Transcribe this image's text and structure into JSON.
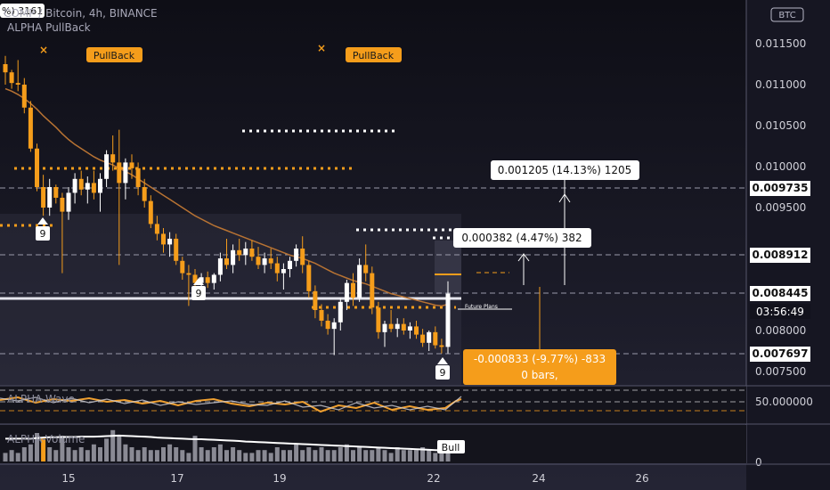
{
  "header": {
    "badge": "%) 3161",
    "title": "COMP / Bitcoin, 4h, BINANCE",
    "indicator": "ALPHA PullBack"
  },
  "currency_badge": "BTC",
  "colors": {
    "background": "#12121c",
    "panel": "#1f2030",
    "orange": "#f59d1b",
    "candle_up": "#ffffff",
    "candle_down": "#f59d1b",
    "ma": "#b87333",
    "wave": "#f0a030"
  },
  "chart_data": [
    {
      "type": "candlestick",
      "title": "COMP / Bitcoin, 4h, BINANCE",
      "y_ticks": [
        "0.011500",
        "0.011000",
        "0.010500",
        "0.010000",
        "0.009500",
        "0.008000",
        "0.007500"
      ],
      "ylim": [
        0.00735,
        0.01225
      ],
      "x_ticks": [
        "15",
        "17",
        "19",
        "22",
        "24",
        "26"
      ],
      "price_labels": [
        {
          "value": 0.009735,
          "text": "0.009735"
        },
        {
          "value": 0.008912,
          "text": "0.008912"
        },
        {
          "value": 0.008445,
          "text": "0.008445"
        },
        {
          "value": 0.007697,
          "text": "0.007697"
        }
      ],
      "countdown": "03:56:49",
      "measure_boxes": [
        {
          "text": "0.001205 (14.13%) 1205"
        },
        {
          "text": "0.000382 (4.47%) 382"
        },
        {
          "text": "-0.000833 (-9.77%) -833",
          "sub": "0 bars,"
        }
      ],
      "pullback_labels": [
        "PullBack",
        "PullBack"
      ],
      "count_labels": [
        "9",
        "9",
        "9"
      ],
      "future_label": "Future Plans",
      "candles": [
        {
          "o": 0.01125,
          "h": 0.01135,
          "l": 0.011,
          "c": 0.01115
        },
        {
          "o": 0.01115,
          "h": 0.01118,
          "l": 0.01095,
          "c": 0.01102
        },
        {
          "o": 0.01102,
          "h": 0.0113,
          "l": 0.01092,
          "c": 0.011
        },
        {
          "o": 0.011,
          "h": 0.01108,
          "l": 0.01065,
          "c": 0.01072
        },
        {
          "o": 0.01072,
          "h": 0.0108,
          "l": 0.01018,
          "c": 0.01022
        },
        {
          "o": 0.01022,
          "h": 0.01028,
          "l": 0.0097,
          "c": 0.00975
        },
        {
          "o": 0.00975,
          "h": 0.0099,
          "l": 0.0094,
          "c": 0.0095
        },
        {
          "o": 0.0095,
          "h": 0.00985,
          "l": 0.0094,
          "c": 0.00975
        },
        {
          "o": 0.00975,
          "h": 0.00978,
          "l": 0.00955,
          "c": 0.00962
        },
        {
          "o": 0.00962,
          "h": 0.00968,
          "l": 0.0087,
          "c": 0.00945
        },
        {
          "o": 0.00945,
          "h": 0.00975,
          "l": 0.00935,
          "c": 0.00968
        },
        {
          "o": 0.00968,
          "h": 0.00992,
          "l": 0.00955,
          "c": 0.00985
        },
        {
          "o": 0.00985,
          "h": 0.00995,
          "l": 0.00965,
          "c": 0.00972
        },
        {
          "o": 0.00972,
          "h": 0.00988,
          "l": 0.00955,
          "c": 0.0098
        },
        {
          "o": 0.0098,
          "h": 0.00995,
          "l": 0.0096,
          "c": 0.00968
        },
        {
          "o": 0.00968,
          "h": 0.00992,
          "l": 0.00945,
          "c": 0.00985
        },
        {
          "o": 0.00985,
          "h": 0.0102,
          "l": 0.00975,
          "c": 0.01015
        },
        {
          "o": 0.01015,
          "h": 0.01038,
          "l": 0.00995,
          "c": 0.01005
        },
        {
          "o": 0.01005,
          "h": 0.01045,
          "l": 0.0088,
          "c": 0.0098
        },
        {
          "o": 0.0098,
          "h": 0.0101,
          "l": 0.0096,
          "c": 0.01005
        },
        {
          "o": 0.01005,
          "h": 0.01015,
          "l": 0.00985,
          "c": 0.00998
        },
        {
          "o": 0.00998,
          "h": 0.01005,
          "l": 0.00965,
          "c": 0.00975
        },
        {
          "o": 0.00975,
          "h": 0.00985,
          "l": 0.0095,
          "c": 0.00958
        },
        {
          "o": 0.00958,
          "h": 0.00965,
          "l": 0.00925,
          "c": 0.0093
        },
        {
          "o": 0.0093,
          "h": 0.0094,
          "l": 0.0091,
          "c": 0.00918
        },
        {
          "o": 0.00918,
          "h": 0.00925,
          "l": 0.00895,
          "c": 0.00905
        },
        {
          "o": 0.00905,
          "h": 0.0092,
          "l": 0.0089,
          "c": 0.00912
        },
        {
          "o": 0.00912,
          "h": 0.00918,
          "l": 0.0088,
          "c": 0.00885
        },
        {
          "o": 0.00885,
          "h": 0.0089,
          "l": 0.00862,
          "c": 0.0087
        },
        {
          "o": 0.0087,
          "h": 0.0088,
          "l": 0.0083,
          "c": 0.00868
        },
        {
          "o": 0.00868,
          "h": 0.00875,
          "l": 0.00845,
          "c": 0.00858
        },
        {
          "o": 0.00858,
          "h": 0.0087,
          "l": 0.0085,
          "c": 0.00865
        },
        {
          "o": 0.00865,
          "h": 0.00872,
          "l": 0.00852,
          "c": 0.00858
        },
        {
          "o": 0.00858,
          "h": 0.0087,
          "l": 0.0085,
          "c": 0.00868
        },
        {
          "o": 0.00868,
          "h": 0.00895,
          "l": 0.0086,
          "c": 0.00888
        },
        {
          "o": 0.00888,
          "h": 0.00912,
          "l": 0.00875,
          "c": 0.0088
        },
        {
          "o": 0.0088,
          "h": 0.00905,
          "l": 0.0087,
          "c": 0.00898
        },
        {
          "o": 0.00898,
          "h": 0.00912,
          "l": 0.00885,
          "c": 0.00892
        },
        {
          "o": 0.00892,
          "h": 0.00908,
          "l": 0.0088,
          "c": 0.009
        },
        {
          "o": 0.009,
          "h": 0.0091,
          "l": 0.00885,
          "c": 0.0089
        },
        {
          "o": 0.0089,
          "h": 0.00902,
          "l": 0.00875,
          "c": 0.0088
        },
        {
          "o": 0.0088,
          "h": 0.00895,
          "l": 0.0087,
          "c": 0.00888
        },
        {
          "o": 0.00888,
          "h": 0.009,
          "l": 0.00875,
          "c": 0.00882
        },
        {
          "o": 0.00882,
          "h": 0.0089,
          "l": 0.0086,
          "c": 0.0087
        },
        {
          "o": 0.0087,
          "h": 0.00882,
          "l": 0.0085,
          "c": 0.00875
        },
        {
          "o": 0.00875,
          "h": 0.0089,
          "l": 0.00865,
          "c": 0.00885
        },
        {
          "o": 0.00885,
          "h": 0.00905,
          "l": 0.00878,
          "c": 0.009
        },
        {
          "o": 0.009,
          "h": 0.00915,
          "l": 0.0087,
          "c": 0.0088
        },
        {
          "o": 0.0088,
          "h": 0.00885,
          "l": 0.0084,
          "c": 0.00848
        },
        {
          "o": 0.00848,
          "h": 0.00855,
          "l": 0.00815,
          "c": 0.00825
        },
        {
          "o": 0.00825,
          "h": 0.00832,
          "l": 0.00805,
          "c": 0.00812
        },
        {
          "o": 0.00812,
          "h": 0.0082,
          "l": 0.00795,
          "c": 0.00802
        },
        {
          "o": 0.00802,
          "h": 0.00815,
          "l": 0.0077,
          "c": 0.0081
        },
        {
          "o": 0.0081,
          "h": 0.0084,
          "l": 0.008,
          "c": 0.00835
        },
        {
          "o": 0.00835,
          "h": 0.00862,
          "l": 0.00825,
          "c": 0.00858
        },
        {
          "o": 0.00858,
          "h": 0.0087,
          "l": 0.0083,
          "c": 0.0084
        },
        {
          "o": 0.0084,
          "h": 0.00888,
          "l": 0.00835,
          "c": 0.0088
        },
        {
          "o": 0.0088,
          "h": 0.00905,
          "l": 0.0086,
          "c": 0.0087
        },
        {
          "o": 0.0087,
          "h": 0.00878,
          "l": 0.0082,
          "c": 0.00828
        },
        {
          "o": 0.00828,
          "h": 0.00835,
          "l": 0.0079,
          "c": 0.00798
        },
        {
          "o": 0.00798,
          "h": 0.00812,
          "l": 0.0078,
          "c": 0.00808
        },
        {
          "o": 0.00808,
          "h": 0.00825,
          "l": 0.00798,
          "c": 0.00802
        },
        {
          "o": 0.00802,
          "h": 0.00815,
          "l": 0.00792,
          "c": 0.00808
        },
        {
          "o": 0.00808,
          "h": 0.00815,
          "l": 0.00795,
          "c": 0.008
        },
        {
          "o": 0.008,
          "h": 0.0081,
          "l": 0.0079,
          "c": 0.00805
        },
        {
          "o": 0.00805,
          "h": 0.00812,
          "l": 0.0079,
          "c": 0.00795
        },
        {
          "o": 0.00795,
          "h": 0.00802,
          "l": 0.0078,
          "c": 0.00785
        },
        {
          "o": 0.00785,
          "h": 0.008,
          "l": 0.00775,
          "c": 0.00798
        },
        {
          "o": 0.00798,
          "h": 0.00805,
          "l": 0.00778,
          "c": 0.00782
        },
        {
          "o": 0.00782,
          "h": 0.0079,
          "l": 0.00772,
          "c": 0.0078
        },
        {
          "o": 0.0078,
          "h": 0.0086,
          "l": 0.00772,
          "c": 0.00845
        }
      ],
      "moving_average": [
        0.01095,
        0.01092,
        0.01088,
        0.01083,
        0.01077,
        0.0107,
        0.01062,
        0.01055,
        0.01048,
        0.0104,
        0.01033,
        0.01027,
        0.01022,
        0.01017,
        0.01012,
        0.01008,
        0.01005,
        0.01002,
        0.00998,
        0.00994,
        0.0099,
        0.00985,
        0.0098,
        0.00975,
        0.0097,
        0.00965,
        0.0096,
        0.00955,
        0.0095,
        0.00945,
        0.0094,
        0.00936,
        0.00932,
        0.00928,
        0.00925,
        0.00922,
        0.00919,
        0.00916,
        0.00913,
        0.0091,
        0.00907,
        0.00904,
        0.00901,
        0.00898,
        0.00895,
        0.00892,
        0.0089,
        0.00888,
        0.00885,
        0.00882,
        0.00878,
        0.00874,
        0.0087,
        0.00867,
        0.00864,
        0.00861,
        0.00859,
        0.00857,
        0.00854,
        0.00851,
        0.00848,
        0.00845,
        0.00843,
        0.00841,
        0.00839,
        0.00837,
        0.00835,
        0.00833,
        0.00831,
        0.0083,
        0.00832
      ]
    },
    {
      "type": "line",
      "title": "ALPHA-Wave",
      "y_tick": "50.000000"
    },
    {
      "type": "bar",
      "title": "ALPHA-Volume",
      "y_tick": "0",
      "signal": "Bull",
      "values": [
        3,
        4,
        3,
        5,
        6,
        10,
        8,
        5,
        4,
        9,
        5,
        4,
        5,
        4,
        6,
        5,
        8,
        11,
        9,
        6,
        5,
        4,
        5,
        4,
        4,
        5,
        6,
        5,
        4,
        3,
        9,
        5,
        4,
        5,
        6,
        4,
        5,
        4,
        3,
        3,
        4,
        4,
        3,
        5,
        4,
        4,
        6,
        4,
        5,
        4,
        5,
        4,
        4,
        5,
        6,
        4,
        5,
        4,
        4,
        5,
        4,
        3,
        5,
        4,
        4,
        4,
        5,
        4,
        3,
        4,
        4
      ],
      "line": [
        8,
        8,
        8,
        8,
        8,
        8.2,
        8.4,
        8.5,
        8.5,
        8.6,
        8.6,
        8.6,
        8.7,
        8.7,
        8.7,
        8.8,
        8.9,
        9,
        9.1,
        9,
        8.9,
        8.8,
        8.7,
        8.6,
        8.4,
        8.3,
        8.2,
        8.1,
        8,
        7.9,
        7.8,
        7.8,
        7.7,
        7.6,
        7.5,
        7.4,
        7.3,
        7.2,
        7,
        6.9,
        6.8,
        6.7,
        6.6,
        6.5,
        6.4,
        6.3,
        6.2,
        6.1,
        6,
        5.9,
        5.8,
        5.7,
        5.6,
        5.5,
        5.4,
        5.3,
        5.2,
        5.1,
        5,
        4.9,
        4.8,
        4.7,
        4.6,
        4.5,
        4.4,
        4.3,
        4.2,
        4.1,
        4,
        3.9,
        3.8
      ]
    }
  ]
}
